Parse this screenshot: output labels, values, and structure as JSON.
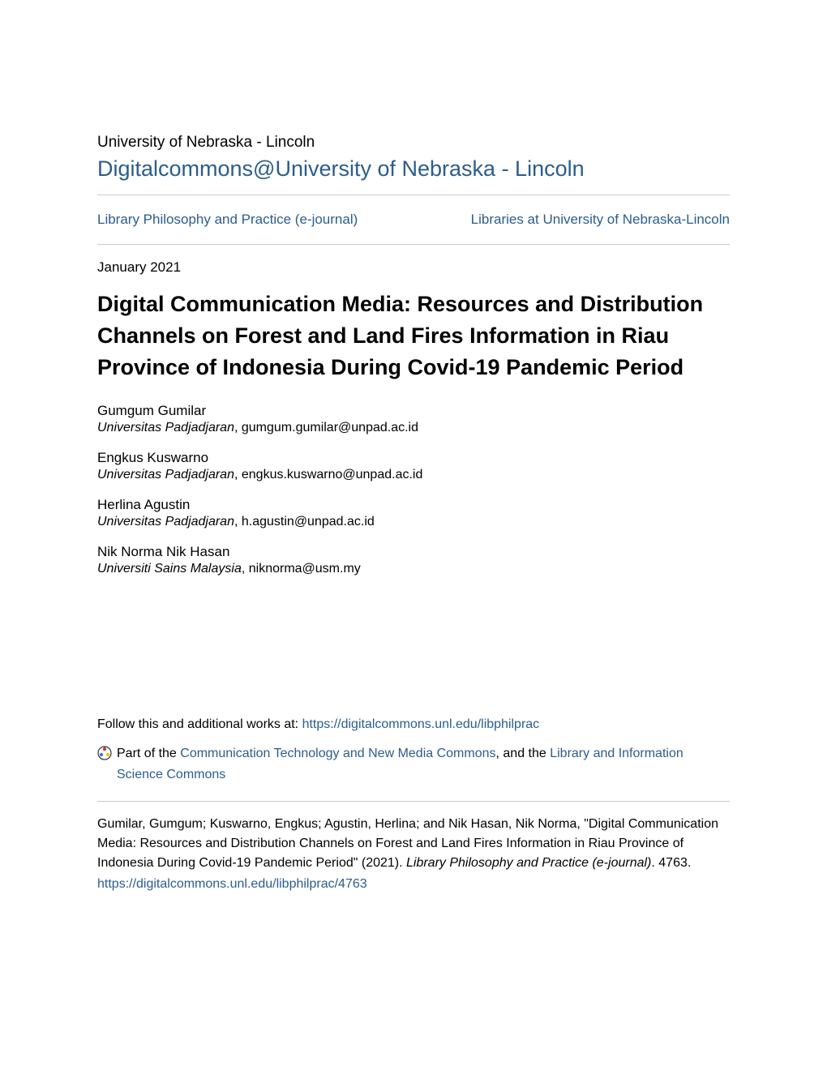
{
  "header": {
    "institution": "University of Nebraska - Lincoln",
    "repository_name": "Digitalcommons@University of Nebraska - Lincoln"
  },
  "nav": {
    "left_link": "Library Philosophy and Practice (e-journal)",
    "right_link": "Libraries at University of Nebraska-Lincoln"
  },
  "article": {
    "date": "January 2021",
    "title": "Digital Communication Media: Resources and Distribution Channels on Forest and Land Fires Information in Riau Province of Indonesia During Covid-19 Pandemic Period"
  },
  "authors": [
    {
      "name": "Gumgum Gumilar",
      "affiliation": "Universitas Padjadjaran",
      "email": "gumgum.gumilar@unpad.ac.id"
    },
    {
      "name": "Engkus Kuswarno",
      "affiliation": "Universitas Padjadjaran",
      "email": "engkus.kuswarno@unpad.ac.id"
    },
    {
      "name": "Herlina Agustin",
      "affiliation": "Universitas Padjadjaran",
      "email": "h.agustin@unpad.ac.id"
    },
    {
      "name": "Nik Norma Nik Hasan",
      "affiliation": "Universiti Sains Malaysia",
      "email": "niknorma@usm.my"
    }
  ],
  "follow": {
    "prefix": "Follow this and additional works at: ",
    "url": "https://digitalcommons.unl.edu/libphilprac",
    "part_of_prefix": "Part of the ",
    "commons1": "Communication Technology and New Media Commons",
    "and_the": ", and the ",
    "commons2": "Library and Information Science Commons"
  },
  "citation": {
    "text_part1": "Gumilar, Gumgum; Kuswarno, Engkus; Agustin, Herlina; and Nik Hasan, Nik Norma, \"Digital Communication Media: Resources and Distribution Channels on Forest and Land Fires Information in Riau Province of Indonesia During Covid-19 Pandemic Period\" (2021). ",
    "journal_italic": "Library Philosophy and Practice (e-journal)",
    "text_part2": ". 4763.",
    "url": "https://digitalcommons.unl.edu/libphilprac/4763"
  },
  "colors": {
    "link_color": "#2b5d8c",
    "text_color": "#000000",
    "divider_color": "#cccccc",
    "background": "#ffffff"
  }
}
